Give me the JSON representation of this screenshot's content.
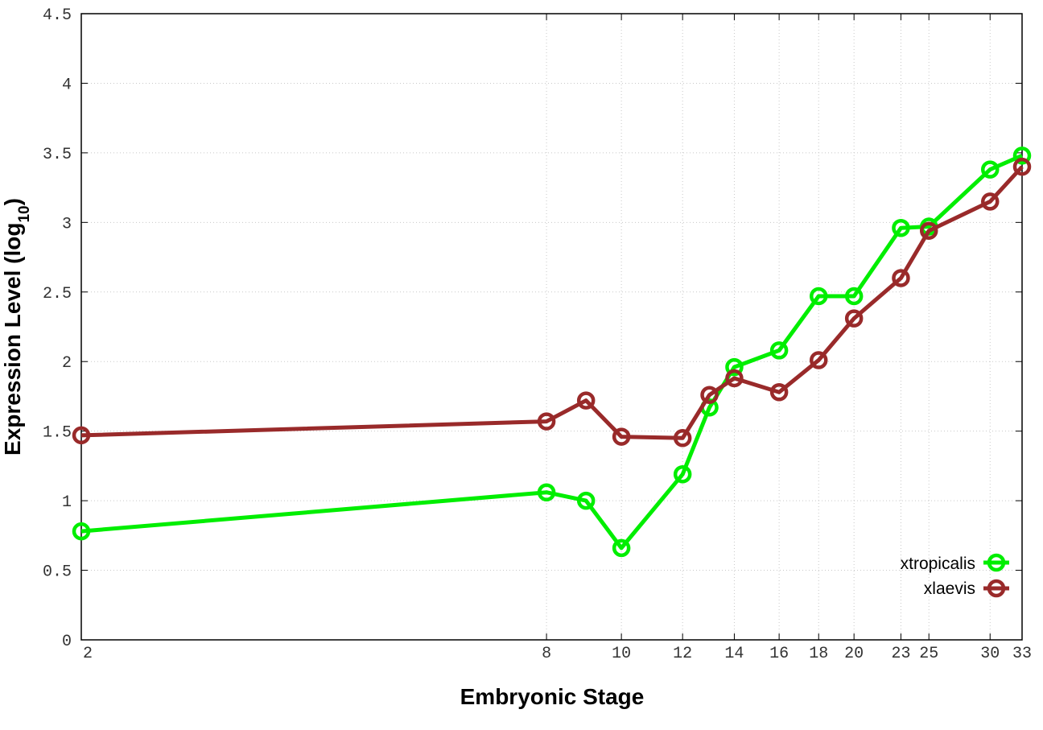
{
  "chart_data": {
    "type": "line",
    "title": "",
    "xlabel": "Embryonic Stage",
    "ylabel": "Expression Level (log10)",
    "ylabel_main": "Expression Level (log",
    "ylabel_sub": "10",
    "ylabel_close": ")",
    "x_scale": "log",
    "xlim": [
      2,
      33
    ],
    "ylim": [
      0,
      4.5
    ],
    "x_ticks": [
      2,
      8,
      10,
      12,
      14,
      16,
      18,
      20,
      23,
      25,
      30,
      33
    ],
    "x_tick_labels": [
      "2",
      "8",
      "10",
      "12",
      "14",
      "16",
      "18",
      "20",
      "23",
      "25",
      "30",
      "33"
    ],
    "y_ticks": [
      0,
      0.5,
      1,
      1.5,
      2,
      2.5,
      3,
      3.5,
      4,
      4.5
    ],
    "y_tick_labels": [
      "0",
      "0.5",
      "1",
      "1.5",
      "2",
      "2.5",
      "3",
      "3.5",
      "4",
      "4.5"
    ],
    "grid": true,
    "legend_position": "bottom-right",
    "series": [
      {
        "name": "xtropicalis",
        "color": "#00ee00",
        "x": [
          2,
          8,
          9,
          10,
          12,
          13,
          14,
          16,
          18,
          20,
          23,
          25,
          30,
          33
        ],
        "values": [
          0.78,
          1.06,
          1.0,
          0.66,
          1.19,
          1.67,
          1.96,
          2.08,
          2.47,
          2.47,
          2.96,
          2.97,
          3.38,
          3.48
        ]
      },
      {
        "name": "xlaevis",
        "color": "#992a2a",
        "x": [
          2,
          8,
          9,
          10,
          12,
          13,
          14,
          16,
          18,
          20,
          23,
          25,
          30,
          33
        ],
        "values": [
          1.47,
          1.57,
          1.72,
          1.46,
          1.45,
          1.76,
          1.88,
          1.78,
          2.01,
          2.31,
          2.6,
          2.94,
          3.15,
          3.4
        ]
      }
    ]
  }
}
